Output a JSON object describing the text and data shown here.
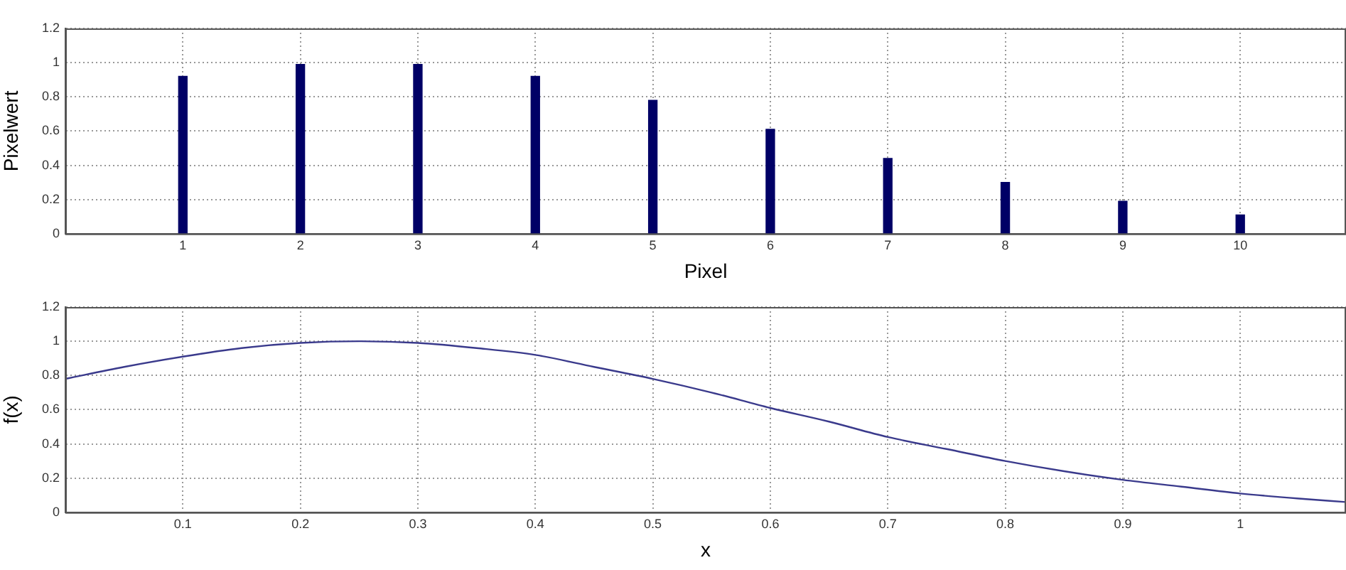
{
  "chart_data": [
    {
      "type": "bar",
      "xlabel": "Pixel",
      "ylabel": "Pixelwert",
      "x": [
        1,
        2,
        3,
        4,
        5,
        6,
        7,
        8,
        9,
        10
      ],
      "values": [
        0.92,
        0.99,
        0.99,
        0.92,
        0.78,
        0.61,
        0.44,
        0.3,
        0.19,
        0.11
      ],
      "color": "#000066",
      "xlim": [
        0,
        10.9
      ],
      "xticks": [
        1,
        2,
        3,
        4,
        5,
        6,
        7,
        8,
        9,
        10
      ],
      "ylim": [
        0,
        1.2
      ],
      "yticks": [
        0,
        0.2,
        0.4,
        0.6,
        0.8,
        1,
        1.2
      ],
      "grid": true
    },
    {
      "type": "line",
      "xlabel": "x",
      "ylabel": "f(x)",
      "x": [
        0,
        0.05,
        0.1,
        0.15,
        0.2,
        0.25,
        0.3,
        0.35,
        0.4,
        0.45,
        0.5,
        0.55,
        0.6,
        0.65,
        0.7,
        0.75,
        0.8,
        0.85,
        0.9,
        0.95,
        1.0,
        1.05,
        1.09
      ],
      "values": [
        0.78,
        0.85,
        0.91,
        0.96,
        0.99,
        1.0,
        0.99,
        0.96,
        0.92,
        0.85,
        0.78,
        0.7,
        0.61,
        0.53,
        0.44,
        0.37,
        0.3,
        0.24,
        0.19,
        0.15,
        0.11,
        0.08,
        0.06
      ],
      "color": "#3a3a8c",
      "xlim": [
        0,
        1.09
      ],
      "xticks": [
        0.1,
        0.2,
        0.3,
        0.4,
        0.5,
        0.6,
        0.7,
        0.8,
        0.9,
        1
      ],
      "ylim": [
        0,
        1.2
      ],
      "yticks": [
        0,
        0.2,
        0.4,
        0.6,
        0.8,
        1,
        1.2
      ],
      "grid": true,
      "marker": "none",
      "line_style": "solid"
    }
  ]
}
